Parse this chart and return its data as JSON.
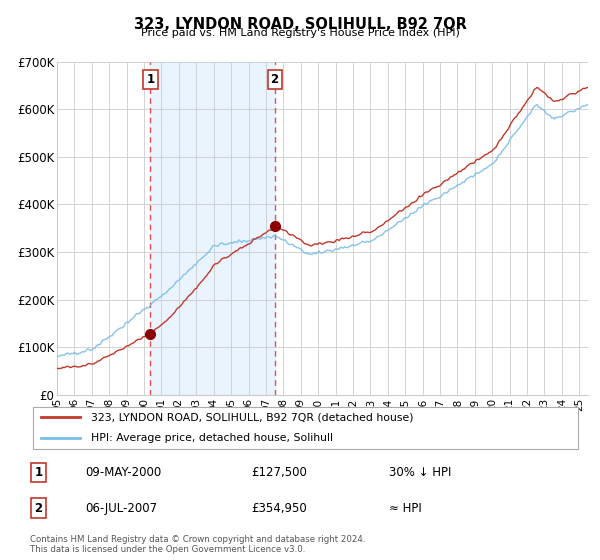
{
  "title": "323, LYNDON ROAD, SOLIHULL, B92 7QR",
  "subtitle": "Price paid vs. HM Land Registry's House Price Index (HPI)",
  "ylabel_ticks": [
    "£0",
    "£100K",
    "£200K",
    "£300K",
    "£400K",
    "£500K",
    "£600K",
    "£700K"
  ],
  "ytick_values": [
    0,
    100000,
    200000,
    300000,
    400000,
    500000,
    600000,
    700000
  ],
  "ylim": [
    0,
    700000
  ],
  "sale1_price": 127500,
  "sale2_price": 354950,
  "legend_line1": "323, LYNDON ROAD, SOLIHULL, B92 7QR (detached house)",
  "legend_line2": "HPI: Average price, detached house, Solihull",
  "table_row1": [
    "1",
    "09-MAY-2000",
    "£127,500",
    "30% ↓ HPI"
  ],
  "table_row2": [
    "2",
    "06-JUL-2007",
    "£354,950",
    "≈ HPI"
  ],
  "footer": "Contains HM Land Registry data © Crown copyright and database right 2024.\nThis data is licensed under the Open Government Licence v3.0.",
  "hpi_color": "#7abde8",
  "price_color": "#c0392b",
  "bg_band_color": "#ddeeff",
  "grid_color": "#cccccc",
  "sale_marker_color": "#8b0000",
  "dashed_line_color": "#e05050",
  "xlim_start": 1995.0,
  "xlim_end": 2025.5,
  "sale1_year_float": 2000.37,
  "sale2_year_float": 2007.5
}
